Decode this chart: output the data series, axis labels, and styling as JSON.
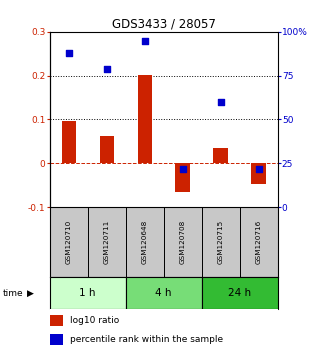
{
  "title": "GDS3433 / 28057",
  "samples": [
    "GSM120710",
    "GSM120711",
    "GSM120648",
    "GSM120708",
    "GSM120715",
    "GSM120716"
  ],
  "log10_ratio": [
    0.097,
    0.062,
    0.202,
    -0.065,
    0.035,
    -0.048
  ],
  "percentile_rank": [
    88,
    79,
    95,
    22,
    60,
    22
  ],
  "time_groups": [
    {
      "label": "1 h",
      "samples": [
        0,
        1
      ],
      "color": "#ccffcc"
    },
    {
      "label": "4 h",
      "samples": [
        2,
        3
      ],
      "color": "#77dd77"
    },
    {
      "label": "24 h",
      "samples": [
        4,
        5
      ],
      "color": "#33bb33"
    }
  ],
  "ylim_left": [
    -0.1,
    0.3
  ],
  "ylim_right": [
    0,
    100
  ],
  "bar_color": "#cc2200",
  "dot_color": "#0000cc",
  "bar_width": 0.38,
  "dot_size": 25,
  "hlines": [
    0.1,
    0.2
  ],
  "right_yticks": [
    0,
    25,
    50,
    75,
    100
  ],
  "right_yticklabels": [
    "0",
    "25",
    "50",
    "75",
    "100%"
  ],
  "left_yticks": [
    -0.1,
    0.0,
    0.1,
    0.2,
    0.3
  ],
  "left_yticklabels": [
    "-0.1",
    "0",
    "0.1",
    "0.2",
    "0.3"
  ],
  "sample_box_color": "#c8c8c8",
  "legend_items": [
    {
      "color": "#cc2200",
      "label": "log10 ratio"
    },
    {
      "color": "#0000cc",
      "label": "percentile rank within the sample"
    }
  ]
}
